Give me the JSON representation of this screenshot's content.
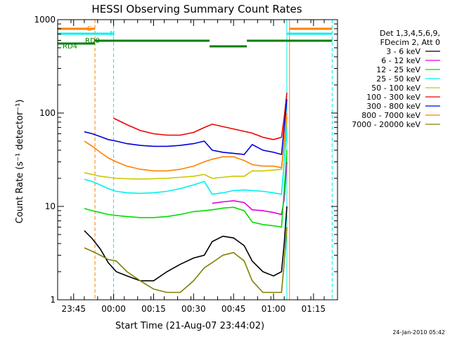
{
  "chart_data": {
    "type": "line",
    "title": "HESSI Observing Summary Count Rates",
    "xlabel": "Start Time (21-Aug-07 23:44:02)",
    "ylabel": "Count Rate (s⁻¹ detector⁻¹)",
    "footer": "24-Jan-2010 05:42",
    "y_scale": "log",
    "ylim": [
      1,
      1000
    ],
    "xlim": [
      "23:39",
      "01:24"
    ],
    "y_ticks": [
      1,
      10,
      100,
      1000
    ],
    "x_ticks": [
      "23:45",
      "00:00",
      "00:15",
      "00:30",
      "00:45",
      "01:00",
      "01:15"
    ],
    "grid": false,
    "legend_position": "right",
    "legend_header": [
      "Det 1,3,4,5,6,9,",
      "FDecim 2, Att 0"
    ],
    "series": [
      {
        "name": "3 - 6 keV",
        "color": "#000000",
        "x": [
          "23:49",
          "23:52",
          "23:55",
          "23:58",
          "00:01",
          "00:05",
          "00:10",
          "00:15",
          "00:20",
          "00:25",
          "00:30",
          "00:34",
          "00:37",
          "00:41",
          "00:45",
          "00:49",
          "00:52",
          "00:56",
          "01:00",
          "01:03",
          "01:04",
          "01:05"
        ],
        "y": [
          5.5,
          4.5,
          3.5,
          2.5,
          2.0,
          1.8,
          1.6,
          1.6,
          2.0,
          2.4,
          2.8,
          3.0,
          4.2,
          4.8,
          4.6,
          3.8,
          2.6,
          2.0,
          1.8,
          2.0,
          4,
          10
        ]
      },
      {
        "name": "6 - 12 keV",
        "color": "#e000e0",
        "x": [
          "00:37",
          "00:41",
          "00:45",
          "00:49",
          "00:52",
          "00:56",
          "01:00",
          "01:03",
          "01:04",
          "01:05"
        ],
        "y": [
          10.8,
          11.2,
          11.5,
          11.0,
          9.2,
          9.0,
          8.6,
          8.2,
          12,
          30
        ]
      },
      {
        "name": "12 - 25 keV",
        "color": "#00dd00",
        "x": [
          "23:49",
          "23:52",
          "23:55",
          "23:58",
          "00:01",
          "00:05",
          "00:10",
          "00:15",
          "00:20",
          "00:25",
          "00:30",
          "00:34",
          "00:37",
          "00:41",
          "00:45",
          "00:49",
          "00:52",
          "00:56",
          "01:00",
          "01:03",
          "01:04",
          "01:05"
        ],
        "y": [
          9.5,
          9.0,
          8.6,
          8.2,
          8.0,
          7.8,
          7.6,
          7.6,
          7.8,
          8.2,
          8.8,
          9.0,
          9.2,
          9.6,
          9.8,
          9.0,
          6.8,
          6.4,
          6.2,
          6.0,
          15,
          40
        ]
      },
      {
        "name": "25 - 50 keV",
        "color": "#00f0f0",
        "x": [
          "23:49",
          "23:52",
          "23:55",
          "23:58",
          "00:01",
          "00:05",
          "00:10",
          "00:15",
          "00:20",
          "00:25",
          "00:30",
          "00:34",
          "00:37",
          "00:41",
          "00:45",
          "00:49",
          "00:52",
          "00:56",
          "01:00",
          "01:03",
          "01:04",
          "01:05"
        ],
        "y": [
          19.5,
          18.5,
          17.0,
          15.5,
          14.5,
          14.0,
          13.8,
          14.0,
          14.5,
          15.5,
          17.0,
          18.5,
          13.5,
          14.0,
          14.8,
          15.0,
          14.8,
          14.5,
          14.0,
          13.5,
          30,
          70
        ]
      },
      {
        "name": "50 - 100 keV",
        "color": "#c8c800",
        "x": [
          "23:49",
          "23:52",
          "23:55",
          "23:58",
          "00:01",
          "00:05",
          "00:10",
          "00:15",
          "00:20",
          "00:25",
          "00:30",
          "00:34",
          "00:37",
          "00:41",
          "00:45",
          "00:49",
          "00:52",
          "00:56",
          "01:00",
          "01:03",
          "01:04",
          "01:05"
        ],
        "y": [
          23.0,
          22.0,
          21.0,
          20.5,
          20.0,
          19.8,
          19.6,
          19.8,
          20.0,
          20.5,
          21.0,
          22.0,
          20.0,
          20.5,
          21.0,
          21.0,
          24.0,
          24.0,
          24.5,
          25.0,
          45,
          90
        ]
      },
      {
        "name": "100 - 300 keV",
        "color": "#ee0000",
        "x": [
          "00:00",
          "00:05",
          "00:10",
          "00:15",
          "00:20",
          "00:25",
          "00:30",
          "00:34",
          "00:37",
          "00:52",
          "00:56",
          "01:00",
          "01:03",
          "01:04",
          "01:05"
        ],
        "y": [
          88,
          75,
          65,
          60,
          58,
          58,
          62,
          70,
          76,
          61,
          55,
          52,
          55,
          90,
          165
        ]
      },
      {
        "name": "300 - 800 keV",
        "color": "#0000dd",
        "x": [
          "23:49",
          "23:52",
          "23:55",
          "23:58",
          "00:01",
          "00:05",
          "00:10",
          "00:15",
          "00:20",
          "00:25",
          "00:30",
          "00:34",
          "00:37",
          "00:41",
          "00:45",
          "00:49",
          "00:52",
          "00:56",
          "01:00",
          "01:03",
          "01:04",
          "01:05"
        ],
        "y": [
          63,
          60,
          56,
          52,
          50,
          47,
          45,
          44,
          44,
          45,
          47,
          50,
          40,
          38,
          37,
          36,
          46,
          40,
          38,
          36,
          70,
          140
        ]
      },
      {
        "name": "800 - 7000 keV",
        "color": "#ff8000",
        "x": [
          "23:49",
          "23:52",
          "23:55",
          "23:58",
          "00:01",
          "00:05",
          "00:10",
          "00:15",
          "00:20",
          "00:25",
          "00:30",
          "00:34",
          "00:37",
          "00:41",
          "00:45",
          "00:49",
          "00:52",
          "00:56",
          "01:00",
          "01:03",
          "01:04",
          "01:05"
        ],
        "y": [
          50,
          44,
          38,
          33,
          30,
          27,
          25,
          24,
          24,
          25,
          27,
          30,
          32,
          34,
          34,
          31,
          28,
          27,
          27,
          26,
          50,
          100
        ]
      },
      {
        "name": "7000 - 20000 keV",
        "color": "#808000",
        "x": [
          "23:49",
          "23:52",
          "23:55",
          "23:58",
          "00:01",
          "00:05",
          "00:10",
          "00:15",
          "00:20",
          "00:25",
          "00:30",
          "00:34",
          "00:37",
          "00:41",
          "00:45",
          "00:49",
          "00:52",
          "00:56",
          "01:00",
          "01:03",
          "01:04",
          "01:05"
        ],
        "y": [
          3.6,
          3.3,
          3.0,
          2.7,
          2.6,
          2.0,
          1.6,
          1.3,
          1.2,
          1.2,
          1.6,
          2.2,
          2.5,
          3.0,
          3.2,
          2.6,
          1.6,
          1.2,
          1.2,
          1.2,
          2.5,
          6
        ]
      }
    ],
    "flags": [
      {
        "label": "S",
        "color": "#ff8000",
        "segments": [
          [
            "23:39",
            "23:53"
          ],
          [
            "01:06",
            "01:22"
          ]
        ]
      },
      {
        "label": "N",
        "color": "#00f0f0",
        "segments": [
          [
            "23:39",
            "00:00"
          ],
          [
            "01:05",
            "01:22"
          ]
        ]
      },
      {
        "label": "RD0",
        "color": "#008000",
        "segments": [
          [
            "23:53",
            "00:36"
          ],
          [
            "00:50",
            "01:22"
          ]
        ]
      },
      {
        "label": "RD4",
        "color": "#008000",
        "segments": [
          [
            "23:39",
            "23:53"
          ]
        ]
      },
      {
        "label": "",
        "color": "#008000",
        "segments": [
          [
            "00:36",
            "00:50"
          ]
        ]
      }
    ],
    "vlines": [
      {
        "x": "23:39",
        "color": "#00f0f0",
        "style": "solid"
      },
      {
        "x": "23:53",
        "color": "#ff8000",
        "style": "dashed"
      },
      {
        "x": "00:00",
        "color": "#00f0f0",
        "style": "dashed"
      },
      {
        "x": "01:05",
        "color": "#00f0f0",
        "style": "solid"
      },
      {
        "x": "01:06",
        "color": "#ff8000",
        "style": "solid"
      },
      {
        "x": "01:22",
        "color": "#00f0f0",
        "style": "dashed"
      }
    ]
  }
}
